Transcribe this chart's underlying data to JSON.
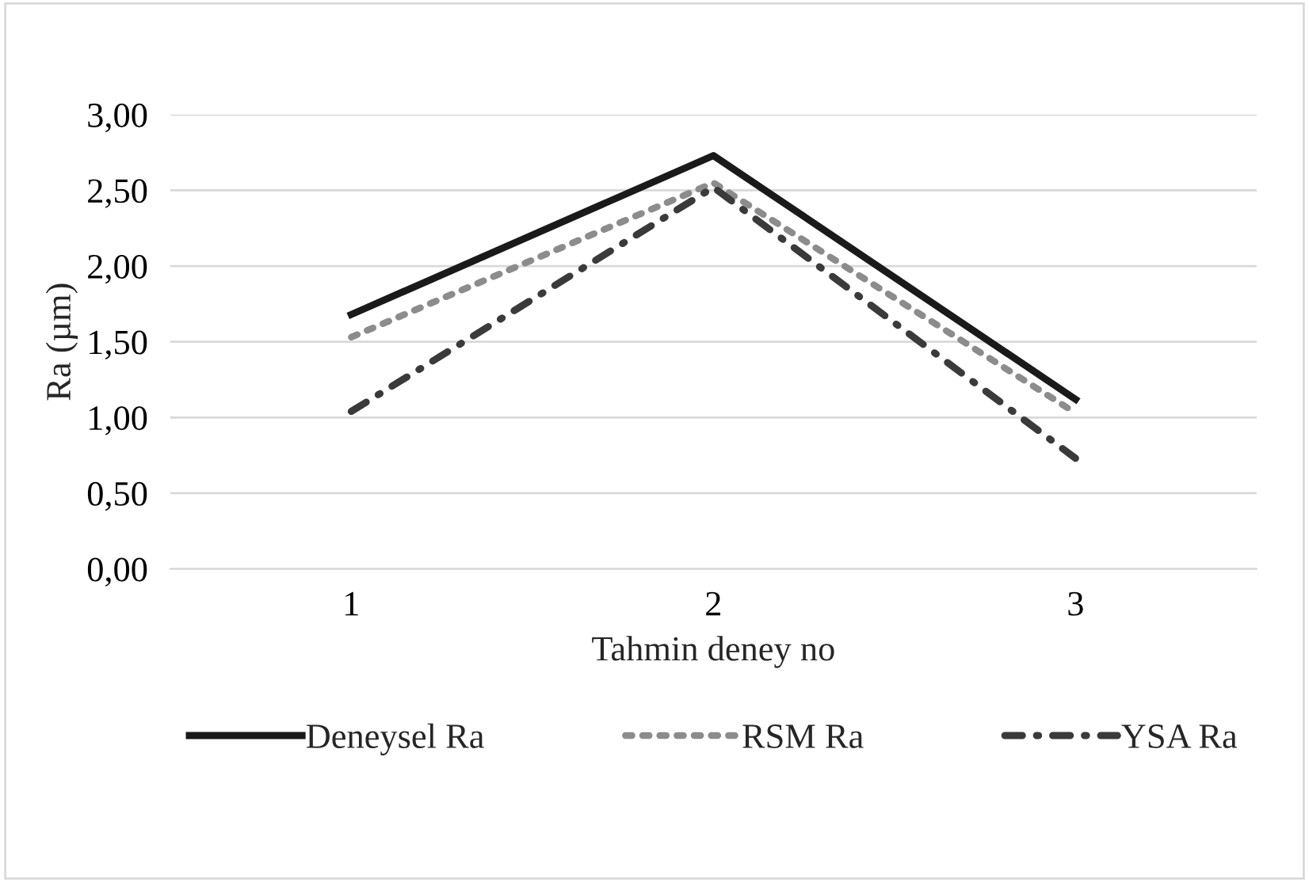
{
  "chart_data": {
    "type": "line",
    "xlabel": "Tahmin deney no",
    "ylabel": "Ra (µm)",
    "categories": [
      "1",
      "2",
      "3"
    ],
    "series": [
      {
        "name": "Deneysel Ra",
        "color": "#1a1a1a",
        "values": [
          1.68,
          2.73,
          1.12
        ],
        "line_style": "solid"
      },
      {
        "name": "RSM Ra",
        "color": "#8c8c8c",
        "values": [
          1.53,
          2.55,
          1.03
        ],
        "line_style": "dotted"
      },
      {
        "name": "YSA Ra",
        "color": "#3a3a3a",
        "values": [
          1.04,
          2.52,
          0.73
        ],
        "line_style": "dashdot"
      }
    ],
    "ylim": [
      0,
      3
    ],
    "yticks": [
      {
        "value": 0,
        "label": "0,00"
      },
      {
        "value": 0.5,
        "label": "0,50"
      },
      {
        "value": 1,
        "label": "1,00"
      },
      {
        "value": 1.5,
        "label": "1,50"
      },
      {
        "value": 2,
        "label": "2,00"
      },
      {
        "value": 2.5,
        "label": "2,50"
      },
      {
        "value": 3,
        "label": "3,00"
      }
    ],
    "grid": "y",
    "legend": "bottom",
    "marker": "none"
  }
}
